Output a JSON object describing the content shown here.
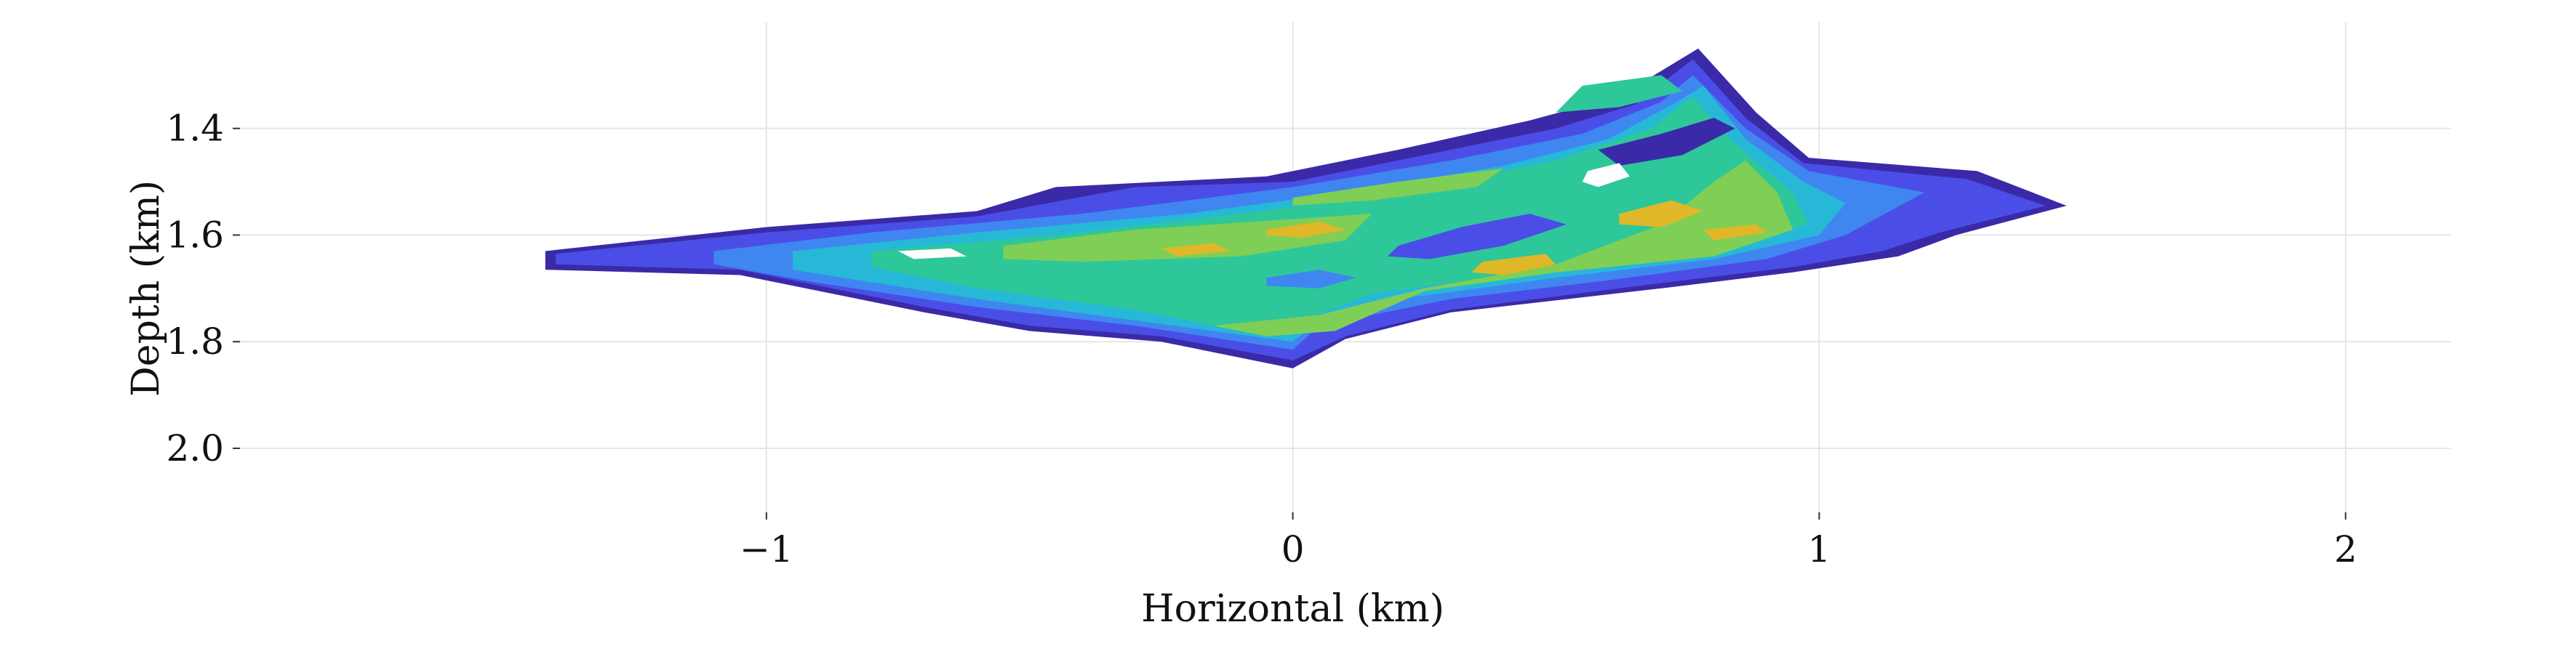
{
  "chart_data": {
    "type": "heatmap",
    "xlabel": "Horizontal (km)",
    "ylabel": "Depth (km)",
    "xlim": [
      -2.0,
      2.2
    ],
    "ylim": [
      2.12,
      1.2
    ],
    "y_inverted": true,
    "grid": true,
    "legend": "none",
    "x_ticks": [
      {
        "value": -1,
        "label": "−1"
      },
      {
        "value": 0,
        "label": "0"
      },
      {
        "value": 1,
        "label": "1"
      },
      {
        "value": 2,
        "label": "2"
      }
    ],
    "y_ticks": [
      {
        "value": 1.4,
        "label": "1.4"
      },
      {
        "value": 1.6,
        "label": "1.6"
      },
      {
        "value": 1.8,
        "label": "1.8"
      },
      {
        "value": 2.0,
        "label": "2.0"
      }
    ],
    "contour_levels": [
      {
        "level": 1,
        "color": "#3a2aa8"
      },
      {
        "level": 2,
        "color": "#4a4ee6"
      },
      {
        "level": 3,
        "color": "#3f86f0"
      },
      {
        "level": 4,
        "color": "#27b8d8"
      },
      {
        "level": 5,
        "color": "#2ec79a"
      },
      {
        "level": 6,
        "color": "#7fcf56"
      },
      {
        "level": 7,
        "color": "#e0b728"
      }
    ],
    "regions": [
      {
        "level": 1,
        "points": [
          [
            -1.42,
            1.63
          ],
          [
            -1.0,
            1.585
          ],
          [
            -0.6,
            1.555
          ],
          [
            -0.45,
            1.51
          ],
          [
            -0.05,
            1.49
          ],
          [
            0.2,
            1.44
          ],
          [
            0.45,
            1.385
          ],
          [
            0.62,
            1.34
          ],
          [
            0.77,
            1.25
          ],
          [
            0.88,
            1.37
          ],
          [
            0.98,
            1.455
          ],
          [
            1.3,
            1.48
          ],
          [
            1.47,
            1.545
          ],
          [
            1.26,
            1.6
          ],
          [
            1.15,
            1.64
          ],
          [
            0.95,
            1.67
          ],
          [
            0.7,
            1.7
          ],
          [
            0.3,
            1.745
          ],
          [
            0.1,
            1.795
          ],
          [
            0.0,
            1.85
          ],
          [
            -0.25,
            1.8
          ],
          [
            -0.5,
            1.78
          ],
          [
            -0.7,
            1.745
          ],
          [
            -1.05,
            1.675
          ],
          [
            -1.42,
            1.665
          ]
        ]
      },
      {
        "level": 2,
        "points": [
          [
            -1.4,
            1.635
          ],
          [
            -1.0,
            1.595
          ],
          [
            -0.6,
            1.565
          ],
          [
            -0.3,
            1.51
          ],
          [
            0.0,
            1.5
          ],
          [
            0.25,
            1.45
          ],
          [
            0.5,
            1.4
          ],
          [
            0.65,
            1.355
          ],
          [
            0.76,
            1.27
          ],
          [
            0.86,
            1.38
          ],
          [
            0.97,
            1.465
          ],
          [
            1.28,
            1.495
          ],
          [
            1.43,
            1.545
          ],
          [
            1.23,
            1.595
          ],
          [
            1.12,
            1.63
          ],
          [
            0.95,
            1.66
          ],
          [
            0.7,
            1.69
          ],
          [
            0.3,
            1.74
          ],
          [
            0.1,
            1.79
          ],
          [
            0.0,
            1.835
          ],
          [
            -0.25,
            1.79
          ],
          [
            -0.5,
            1.77
          ],
          [
            -0.7,
            1.735
          ],
          [
            -1.05,
            1.665
          ],
          [
            -1.4,
            1.655
          ]
        ]
      },
      {
        "level": 3,
        "points": [
          [
            -1.1,
            1.63
          ],
          [
            -0.8,
            1.595
          ],
          [
            -0.4,
            1.56
          ],
          [
            0.0,
            1.51
          ],
          [
            0.3,
            1.46
          ],
          [
            0.55,
            1.41
          ],
          [
            0.7,
            1.35
          ],
          [
            0.76,
            1.3
          ],
          [
            0.86,
            1.4
          ],
          [
            0.98,
            1.48
          ],
          [
            1.2,
            1.52
          ],
          [
            1.05,
            1.6
          ],
          [
            0.9,
            1.645
          ],
          [
            0.6,
            1.685
          ],
          [
            0.3,
            1.72
          ],
          [
            0.05,
            1.77
          ],
          [
            0.0,
            1.815
          ],
          [
            -0.3,
            1.77
          ],
          [
            -0.6,
            1.735
          ],
          [
            -0.9,
            1.69
          ],
          [
            -1.1,
            1.655
          ]
        ]
      },
      {
        "level": 4,
        "points": [
          [
            -0.95,
            1.63
          ],
          [
            -0.6,
            1.595
          ],
          [
            -0.2,
            1.56
          ],
          [
            0.1,
            1.52
          ],
          [
            0.4,
            1.47
          ],
          [
            0.6,
            1.42
          ],
          [
            0.73,
            1.35
          ],
          [
            0.78,
            1.32
          ],
          [
            0.86,
            1.42
          ],
          [
            0.97,
            1.5
          ],
          [
            1.05,
            1.54
          ],
          [
            1.0,
            1.6
          ],
          [
            0.8,
            1.645
          ],
          [
            0.5,
            1.68
          ],
          [
            0.2,
            1.72
          ],
          [
            0.05,
            1.76
          ],
          [
            0.0,
            1.8
          ],
          [
            -0.3,
            1.76
          ],
          [
            -0.6,
            1.72
          ],
          [
            -0.95,
            1.665
          ]
        ]
      },
      {
        "level": 5,
        "points": [
          [
            -0.8,
            1.63
          ],
          [
            -0.45,
            1.6
          ],
          [
            -0.1,
            1.56
          ],
          [
            0.2,
            1.52
          ],
          [
            0.5,
            1.46
          ],
          [
            0.68,
            1.4
          ],
          [
            0.76,
            1.34
          ],
          [
            0.83,
            1.42
          ],
          [
            0.95,
            1.52
          ],
          [
            0.98,
            1.58
          ],
          [
            0.75,
            1.64
          ],
          [
            0.45,
            1.67
          ],
          [
            0.15,
            1.71
          ],
          [
            0.02,
            1.76
          ],
          [
            -0.05,
            1.79
          ],
          [
            -0.3,
            1.74
          ],
          [
            -0.6,
            1.7
          ],
          [
            -0.8,
            1.66
          ]
        ]
      },
      {
        "level": 5,
        "points": [
          [
            0.55,
            1.32
          ],
          [
            0.7,
            1.3
          ],
          [
            0.74,
            1.33
          ],
          [
            0.62,
            1.36
          ],
          [
            0.5,
            1.37
          ]
        ]
      },
      {
        "level": 6,
        "points": [
          [
            -0.55,
            1.62
          ],
          [
            -0.3,
            1.59
          ],
          [
            0.0,
            1.57
          ],
          [
            0.15,
            1.56
          ],
          [
            0.1,
            1.61
          ],
          [
            -0.1,
            1.64
          ],
          [
            -0.4,
            1.65
          ],
          [
            -0.55,
            1.645
          ]
        ]
      },
      {
        "level": 6,
        "points": [
          [
            0.05,
            1.75
          ],
          [
            0.25,
            1.7
          ],
          [
            0.5,
            1.655
          ],
          [
            0.7,
            1.58
          ],
          [
            0.8,
            1.5
          ],
          [
            0.86,
            1.46
          ],
          [
            0.92,
            1.52
          ],
          [
            0.95,
            1.59
          ],
          [
            0.8,
            1.64
          ],
          [
            0.5,
            1.67
          ],
          [
            0.25,
            1.705
          ],
          [
            0.08,
            1.78
          ],
          [
            -0.05,
            1.79
          ],
          [
            -0.15,
            1.77
          ]
        ]
      },
      {
        "level": 6,
        "points": [
          [
            0.0,
            1.53
          ],
          [
            0.2,
            1.5
          ],
          [
            0.4,
            1.475
          ],
          [
            0.35,
            1.51
          ],
          [
            0.15,
            1.535
          ],
          [
            0.0,
            1.545
          ]
        ]
      },
      {
        "level": 7,
        "points": [
          [
            -0.05,
            1.59
          ],
          [
            0.05,
            1.575
          ],
          [
            0.1,
            1.59
          ],
          [
            0.02,
            1.605
          ],
          [
            -0.05,
            1.6
          ]
        ]
      },
      {
        "level": 7,
        "points": [
          [
            -0.25,
            1.625
          ],
          [
            -0.15,
            1.615
          ],
          [
            -0.12,
            1.63
          ],
          [
            -0.22,
            1.64
          ]
        ]
      },
      {
        "level": 7,
        "points": [
          [
            0.36,
            1.65
          ],
          [
            0.48,
            1.635
          ],
          [
            0.5,
            1.655
          ],
          [
            0.4,
            1.675
          ],
          [
            0.34,
            1.67
          ]
        ]
      },
      {
        "level": 7,
        "points": [
          [
            0.62,
            1.56
          ],
          [
            0.72,
            1.535
          ],
          [
            0.78,
            1.555
          ],
          [
            0.7,
            1.585
          ],
          [
            0.62,
            1.58
          ]
        ]
      },
      {
        "level": 7,
        "points": [
          [
            0.78,
            1.59
          ],
          [
            0.88,
            1.58
          ],
          [
            0.9,
            1.595
          ],
          [
            0.8,
            1.61
          ]
        ]
      },
      {
        "level": 1,
        "points": [
          [
            0.58,
            1.44
          ],
          [
            0.7,
            1.41
          ],
          [
            0.8,
            1.38
          ],
          [
            0.84,
            1.4
          ],
          [
            0.74,
            1.45
          ],
          [
            0.62,
            1.47
          ]
        ]
      },
      {
        "level": 2,
        "points": [
          [
            0.2,
            1.62
          ],
          [
            0.32,
            1.585
          ],
          [
            0.45,
            1.56
          ],
          [
            0.52,
            1.58
          ],
          [
            0.4,
            1.62
          ],
          [
            0.26,
            1.645
          ],
          [
            0.18,
            1.64
          ]
        ]
      },
      {
        "level": 3,
        "points": [
          [
            -0.05,
            1.68
          ],
          [
            0.05,
            1.665
          ],
          [
            0.12,
            1.68
          ],
          [
            0.05,
            1.7
          ],
          [
            -0.05,
            1.695
          ]
        ]
      },
      {
        "level": 0,
        "points": [
          [
            0.56,
            1.48
          ],
          [
            0.62,
            1.465
          ],
          [
            0.64,
            1.49
          ],
          [
            0.58,
            1.51
          ],
          [
            0.55,
            1.5
          ]
        ]
      },
      {
        "level": 0,
        "points": [
          [
            -0.75,
            1.63
          ],
          [
            -0.65,
            1.625
          ],
          [
            -0.62,
            1.64
          ],
          [
            -0.72,
            1.645
          ]
        ]
      }
    ]
  }
}
